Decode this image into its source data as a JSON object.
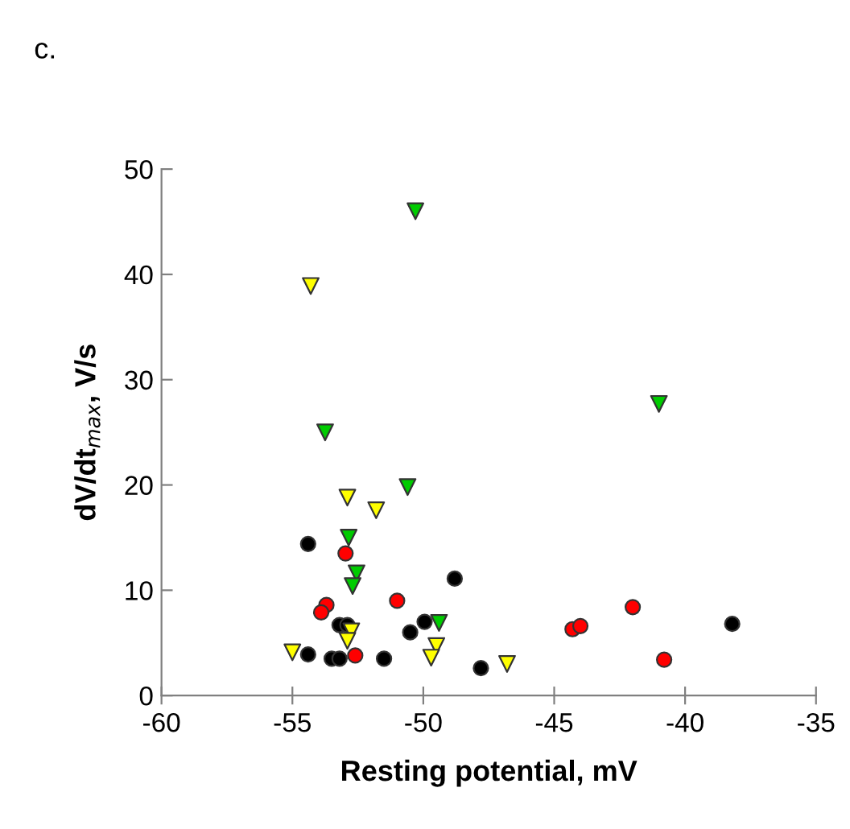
{
  "chart_data": {
    "type": "scatter",
    "xlabel": "Resting potential, mV",
    "ylabel": "dV/dt$_{max}$, V/s",
    "annotations": [
      "c."
    ],
    "xlim": [
      -60,
      -35
    ],
    "xticks": [
      -60,
      -55,
      -50,
      -45,
      -40,
      -35
    ],
    "ylim": [
      0,
      50
    ],
    "yticks": [
      0,
      10,
      20,
      30,
      40,
      50
    ],
    "grid": false,
    "legend": false,
    "series": [
      {
        "color": "#000000",
        "marker": "circle",
        "x": [
          -54.4,
          -48.8,
          -53.2,
          -52.9,
          -54.4,
          -53.5,
          -53.2,
          -51.5,
          -50.5,
          -49.95,
          -47.8,
          -38.2
        ],
        "values": [
          14.4,
          11.1,
          6.7,
          6.7,
          3.9,
          3.5,
          3.5,
          3.5,
          6.0,
          7.0,
          2.6,
          6.8
        ]
      },
      {
        "color": "#ff0000",
        "marker": "circle",
        "x": [
          -52.97,
          -51.0,
          -53.7,
          -53.9,
          -52.6,
          -44.3,
          -44.0,
          -42.0,
          -40.8
        ],
        "values": [
          13.5,
          9.0,
          8.6,
          7.9,
          3.8,
          6.3,
          6.6,
          8.4,
          3.4
        ]
      },
      {
        "color": "#00cc00",
        "marker": "triangle",
        "x": [
          -50.3,
          -53.75,
          -50.6,
          -52.85,
          -52.55,
          -52.7,
          -49.4,
          -41.0
        ],
        "values": [
          46,
          25.0,
          19.8,
          15.0,
          11.6,
          10.4,
          6.9,
          27.7
        ]
      },
      {
        "color": "#ffff00",
        "marker": "triangle",
        "x": [
          -54.3,
          -52.9,
          -51.8,
          -55.0,
          -52.75,
          -52.9,
          -49.5,
          -49.7,
          -46.8
        ],
        "values": [
          38.9,
          18.8,
          17.6,
          4.1,
          6.1,
          5.2,
          4.7,
          3.6,
          3.0
        ]
      }
    ]
  }
}
